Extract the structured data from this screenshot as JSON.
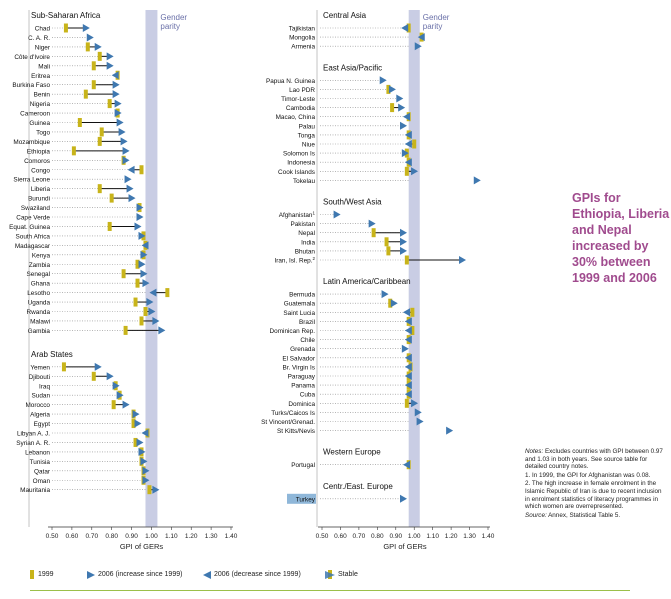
{
  "callout": "GPIs for Ethiopia, Liberia and Nepal increased by 30% between 1999 and 2006",
  "notes": {
    "notes_label": "Notes:",
    "notes_text": "Excludes countries with GPI between 0.97 and 1.03 in both years. See source table for detailed country notes.",
    "note1": "1. In 1999, the GPI for Afghanistan was 0.08.",
    "note2": "2. The high increase in female enrolment in the Islamic Republic of Iran is due to recent inclusion in enrolment statistics of literacy programmes in which women are overrepresented.",
    "source_label": "Source:",
    "source_text": "Annex, Statistical Table 5."
  },
  "legend": {
    "y1999": "1999",
    "inc": "2006 (increase since 1999)",
    "dec": "2006 (decrease since 1999)",
    "stable": "Stable"
  },
  "colors": {
    "y1999": "#c8b41a",
    "arrow": "#3f78b0",
    "parity_band": "#c9cde4",
    "parity_text": "#6a70a8",
    "line": "#111111",
    "dotted": "#8a8a8a",
    "axis": "#333333",
    "highlight_box": "#8fb7d9"
  },
  "chart_data": [
    {
      "type": "dumbbell",
      "panel": "left",
      "xlabel": "GPI of GERs",
      "xlim": [
        0.5,
        1.4
      ],
      "xticks": [
        "0.50",
        "0.60",
        "0.70",
        "0.80",
        "0.90",
        "1.00",
        "1.10",
        "1.20",
        "1.30",
        "1.40"
      ],
      "parity_label": "Gender parity",
      "parity_range": [
        0.97,
        1.03
      ],
      "groups": [
        {
          "name": "Sub-Saharan Africa",
          "countries": [
            {
              "c": "Chad",
              "y1999": 0.57,
              "y2006": 0.68
            },
            {
              "c": "C. A. R.",
              "y1999": null,
              "y2006": 0.7
            },
            {
              "c": "Niger",
              "y1999": 0.68,
              "y2006": 0.74
            },
            {
              "c": "Côte d'Ivoire",
              "y1999": 0.74,
              "y2006": 0.8
            },
            {
              "c": "Mali",
              "y1999": 0.71,
              "y2006": 0.8
            },
            {
              "c": "Eritrea",
              "y1999": 0.83,
              "y2006": 0.81
            },
            {
              "c": "Burkina Faso",
              "y1999": 0.71,
              "y2006": 0.83
            },
            {
              "c": "Benin",
              "y1999": 0.67,
              "y2006": 0.83
            },
            {
              "c": "Nigeria",
              "y1999": 0.79,
              "y2006": 0.84
            },
            {
              "c": "Cameroon",
              "y1999": 0.83,
              "y2006": 0.84
            },
            {
              "c": "Guinea",
              "y1999": 0.64,
              "y2006": 0.85
            },
            {
              "c": "Togo",
              "y1999": 0.75,
              "y2006": 0.86
            },
            {
              "c": "Mozambique",
              "y1999": 0.74,
              "y2006": 0.87
            },
            {
              "c": "Ethiopia",
              "y1999": 0.61,
              "y2006": 0.88
            },
            {
              "c": "Comoros",
              "y1999": 0.86,
              "y2006": 0.88
            },
            {
              "c": "Congo",
              "y1999": 0.95,
              "y2006": 0.89
            },
            {
              "c": "Sierra Leone",
              "y1999": null,
              "y2006": 0.89
            },
            {
              "c": "Liberia",
              "y1999": 0.74,
              "y2006": 0.9
            },
            {
              "c": "Burundi",
              "y1999": 0.8,
              "y2006": 0.91
            },
            {
              "c": "Swaziland",
              "y1999": 0.94,
              "y2006": 0.95
            },
            {
              "c": "Cape Verde",
              "y1999": null,
              "y2006": 0.95
            },
            {
              "c": "Equat. Guinea",
              "y1999": 0.79,
              "y2006": 0.94
            },
            {
              "c": "South Africa",
              "y1999": 0.96,
              "y2006": 0.96
            },
            {
              "c": "Madagascar",
              "y1999": 0.97,
              "y2006": 0.96
            },
            {
              "c": "Kenya",
              "y1999": 0.96,
              "y2006": 0.97
            },
            {
              "c": "Zambia",
              "y1999": 0.93,
              "y2006": 0.96
            },
            {
              "c": "Senegal",
              "y1999": 0.86,
              "y2006": 0.97
            },
            {
              "c": "Ghana",
              "y1999": 0.93,
              "y2006": 0.98
            },
            {
              "c": "Lesotho",
              "y1999": 1.08,
              "y2006": 1.0
            },
            {
              "c": "Uganda",
              "y1999": 0.92,
              "y2006": 1.0
            },
            {
              "c": "Rwanda",
              "y1999": 0.97,
              "y2006": 1.01
            },
            {
              "c": "Malawi",
              "y1999": 0.95,
              "y2006": 1.03
            },
            {
              "c": "Gambia",
              "y1999": 0.87,
              "y2006": 1.06
            }
          ]
        },
        {
          "name": "Arab States",
          "countries": [
            {
              "c": "Yemen",
              "y1999": 0.56,
              "y2006": 0.74
            },
            {
              "c": "Djibouti",
              "y1999": 0.71,
              "y2006": 0.8
            },
            {
              "c": "Iraq",
              "y1999": 0.82,
              "y2006": 0.83
            },
            {
              "c": "Sudan",
              "y1999": 0.84,
              "y2006": 0.85
            },
            {
              "c": "Morocco",
              "y1999": 0.81,
              "y2006": 0.88
            },
            {
              "c": "Algeria",
              "y1999": 0.91,
              "y2006": 0.93
            },
            {
              "c": "Egypt",
              "y1999": 0.91,
              "y2006": 0.94
            },
            {
              "c": "Libyan A. J.",
              "y1999": 0.98,
              "y2006": 0.96
            },
            {
              "c": "Syrian A. R.",
              "y1999": 0.92,
              "y2006": 0.95
            },
            {
              "c": "Lebanon",
              "y1999": 0.95,
              "y2006": 0.96
            },
            {
              "c": "Tunisia",
              "y1999": 0.95,
              "y2006": 0.97
            },
            {
              "c": "Qatar",
              "y1999": 0.96,
              "y2006": 0.98
            },
            {
              "c": "Oman",
              "y1999": 0.96,
              "y2006": 0.98
            },
            {
              "c": "Mauritania",
              "y1999": 0.99,
              "y2006": 1.03
            }
          ]
        }
      ]
    },
    {
      "type": "dumbbell",
      "panel": "right",
      "xlabel": "GPI of GERs",
      "xlim": [
        0.5,
        1.4
      ],
      "xticks": [
        "0.50",
        "0.60",
        "0.70",
        "0.80",
        "0.90",
        "1.00",
        "1.10",
        "1.20",
        "1.30",
        "1.40"
      ],
      "parity_label": "Gender parity",
      "parity_range": [
        0.97,
        1.03
      ],
      "groups": [
        {
          "name": "Central Asia",
          "countries": [
            {
              "c": "Tajikistan",
              "y1999": 0.97,
              "y2006": 0.94
            },
            {
              "c": "Mongolia",
              "y1999": 1.04,
              "y2006": 1.03
            },
            {
              "c": "Armenia",
              "y1999": null,
              "y2006": 1.03
            }
          ]
        },
        {
          "name": "East Asia/Pacific",
          "countries": [
            {
              "c": "Papua N. Guinea",
              "y1999": null,
              "y2006": 0.84
            },
            {
              "c": "Lao PDR",
              "y1999": 0.86,
              "y2006": 0.89
            },
            {
              "c": "Timor-Leste",
              "y1999": null,
              "y2006": 0.93
            },
            {
              "c": "Cambodia",
              "y1999": 0.88,
              "y2006": 0.94
            },
            {
              "c": "Macao, China",
              "y1999": 0.97,
              "y2006": 0.95
            },
            {
              "c": "Palau",
              "y1999": null,
              "y2006": 0.95
            },
            {
              "c": "Tonga",
              "y1999": 0.97,
              "y2006": 0.96
            },
            {
              "c": "Niue",
              "y1999": 1.0,
              "y2006": 0.96
            },
            {
              "c": "Solomon Is",
              "y1999": 0.96,
              "y2006": 0.96
            },
            {
              "c": "Indonesia",
              "y1999": 0.97,
              "y2006": 0.96
            },
            {
              "c": "Cook Islands",
              "y1999": 0.96,
              "y2006": 1.01
            },
            {
              "c": "Tokelau",
              "y1999": null,
              "y2006": 1.35
            }
          ]
        },
        {
          "name": "South/West Asia",
          "countries": [
            {
              "c": "Afghanistan",
              "sup": "1",
              "y1999": null,
              "y2006": 0.59
            },
            {
              "c": "Pakistan",
              "y1999": null,
              "y2006": 0.78
            },
            {
              "c": "Nepal",
              "y1999": 0.78,
              "y2006": 0.95
            },
            {
              "c": "India",
              "y1999": 0.85,
              "y2006": 0.95
            },
            {
              "c": "Bhutan",
              "y1999": 0.86,
              "y2006": 0.95
            },
            {
              "c": "Iran, Isl. Rep.",
              "sup": "2",
              "y1999": 0.96,
              "y2006": 1.27
            }
          ]
        },
        {
          "name": "Latin America/Caribbean",
          "countries": [
            {
              "c": "Bermuda",
              "y1999": null,
              "y2006": 0.85
            },
            {
              "c": "Guatemala",
              "y1999": 0.87,
              "y2006": 0.9
            },
            {
              "c": "Saint Lucia",
              "y1999": 0.99,
              "y2006": 0.95
            },
            {
              "c": "Brazil",
              "y1999": 0.97,
              "y2006": 0.96
            },
            {
              "c": "Dominican Rep.",
              "y1999": 0.99,
              "y2006": 0.96
            },
            {
              "c": "Chile",
              "y1999": 0.97,
              "y2006": 0.96
            },
            {
              "c": "Grenada",
              "y1999": null,
              "y2006": 0.96
            },
            {
              "c": "El Salvador",
              "y1999": 0.97,
              "y2006": 0.96
            },
            {
              "c": "Br. Virgin Is",
              "y1999": 0.98,
              "y2006": 0.96
            },
            {
              "c": "Paraguay",
              "y1999": 0.97,
              "y2006": 0.96
            },
            {
              "c": "Panama",
              "y1999": 0.97,
              "y2006": 0.96
            },
            {
              "c": "Cuba",
              "y1999": 0.97,
              "y2006": 0.96
            },
            {
              "c": "Dominica",
              "y1999": 0.96,
              "y2006": 1.01
            },
            {
              "c": "Turks/Caicos Is",
              "y1999": null,
              "y2006": 1.03
            },
            {
              "c": "St Vincent/Grenad.",
              "y1999": null,
              "y2006": 1.04
            },
            {
              "c": "St Kitts/Nevis",
              "y1999": null,
              "y2006": 1.2
            }
          ]
        },
        {
          "name": "Western Europe",
          "countries": [
            {
              "c": "Portugal",
              "y1999": 0.97,
              "y2006": 0.95
            }
          ]
        },
        {
          "name": "Centr./East. Europe",
          "countries": [
            {
              "c": "Turkey",
              "highlight": true,
              "y1999": null,
              "y2006": 0.95
            }
          ]
        }
      ]
    }
  ]
}
